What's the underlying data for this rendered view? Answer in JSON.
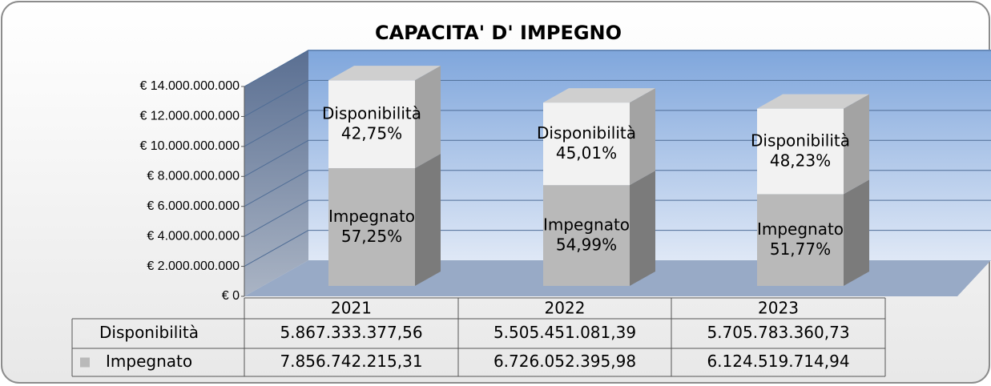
{
  "chart_data": {
    "type": "bar3d_stacked",
    "title": "CAPACITA' D' IMPEGNO",
    "categories": [
      "2021",
      "2022",
      "2023"
    ],
    "series": [
      {
        "name": "Impegnato",
        "color": "#b9b9b9",
        "values": [
          7856742215.31,
          6726052395.98,
          6124519714.94
        ],
        "value_labels": [
          "7.856.742.215,31",
          "6.726.052.395,98",
          "6.124.519.714,94"
        ],
        "percentages": [
          57.25,
          54.99,
          51.77
        ],
        "percentage_labels": [
          "57,25%",
          "54,99%",
          "51,77%"
        ]
      },
      {
        "name": "Disponibilità",
        "color": "#f2f2f2",
        "values": [
          5867333377.56,
          5505451081.39,
          5705783360.73
        ],
        "value_labels": [
          "5.867.333.377,56",
          "5.505.451.081,39",
          "5.705.783.360,73"
        ],
        "percentages": [
          42.75,
          45.01,
          48.23
        ],
        "percentage_labels": [
          "42,75%",
          "45,01%",
          "48,23%"
        ]
      }
    ],
    "ylim": [
      0,
      14000000000
    ],
    "yticks": [
      {
        "value": 0,
        "label": "€ 0"
      },
      {
        "value": 2000000000,
        "label": "€ 2.000.000.000"
      },
      {
        "value": 4000000000,
        "label": "€ 4.000.000.000"
      },
      {
        "value": 6000000000,
        "label": "€ 6.000.000.000"
      },
      {
        "value": 8000000000,
        "label": "€ 8.000.000.000"
      },
      {
        "value": 10000000000,
        "label": "€ 10.000.000.000"
      },
      {
        "value": 12000000000,
        "label": "€ 12.000.000.000"
      },
      {
        "value": 14000000000,
        "label": "€ 14.000.000.000"
      }
    ],
    "grid": true
  }
}
